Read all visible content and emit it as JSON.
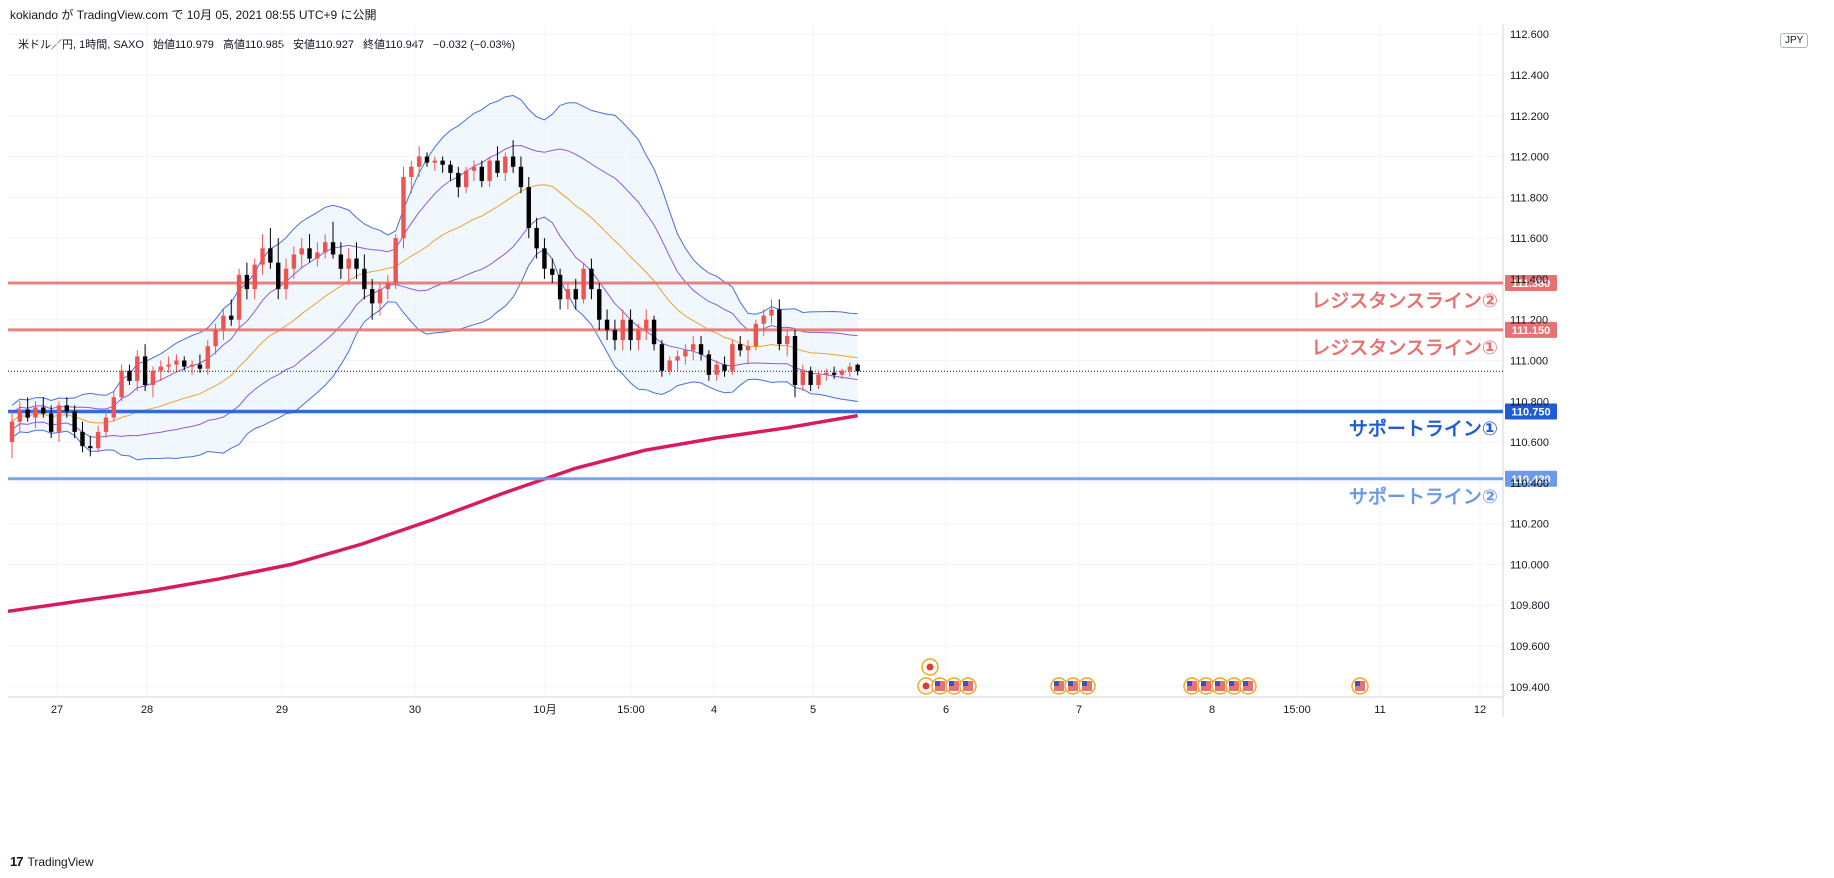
{
  "header": {
    "published_by": "kokiando が TradingView.com で 10月 05, 2021 08:55 UTC+9 に公開",
    "symbol": "米ドル／円, 1時間, SAXO",
    "open": "始値110.979",
    "high": "高値110.985",
    "low": "安値110.927",
    "close": "終値110.947",
    "change": "−0.032 (−0.03%)"
  },
  "currency": "JPY",
  "footer": {
    "brand": "TradingView",
    "logo": "17"
  },
  "colors": {
    "bull": "#ef5350",
    "bear": "#000000",
    "resistance": "#e57373",
    "support1": "#1e5bd6",
    "support2": "#6b9be8",
    "ma_long": "#d81b60",
    "bb_outer": "#4a6fd8",
    "bb_inner": "#8e5bd6",
    "ma_mid": "#f0a030",
    "band_fill": "#e3f2fd"
  },
  "chart_data": {
    "type": "candlestick",
    "symbol": "USDJPY",
    "timeframe": "1時間",
    "ylim": [
      109.35,
      112.65
    ],
    "y_ticks": [
      "112.600",
      "112.400",
      "112.200",
      "112.000",
      "111.800",
      "111.600",
      "111.400",
      "111.200",
      "111.000",
      "110.800",
      "110.600",
      "110.400",
      "110.200",
      "110.000",
      "109.800",
      "109.600",
      "109.400"
    ],
    "x_ticks": [
      "27",
      "28",
      "29",
      "30",
      "10月",
      "15:00",
      "4",
      "5",
      "6",
      "7",
      "8",
      "15:00",
      "11",
      "12"
    ],
    "price_labels": [
      "111.380",
      "111.150",
      "110.750",
      "110.420"
    ],
    "horizontal_lines": [
      {
        "name": "レジスタンスライン②",
        "value": 111.38
      },
      {
        "name": "レジスタンスライン①",
        "value": 111.15
      },
      {
        "name": "サポートライン①",
        "value": 110.75
      },
      {
        "name": "サポートライン②",
        "value": 110.42
      }
    ],
    "last_price": 110.947,
    "candles": [
      {
        "o": 110.6,
        "h": 110.75,
        "l": 110.52,
        "c": 110.7
      },
      {
        "o": 110.7,
        "h": 110.8,
        "l": 110.65,
        "c": 110.76
      },
      {
        "o": 110.76,
        "h": 110.82,
        "l": 110.7,
        "c": 110.72
      },
      {
        "o": 110.72,
        "h": 110.8,
        "l": 110.67,
        "c": 110.77
      },
      {
        "o": 110.77,
        "h": 110.82,
        "l": 110.72,
        "c": 110.74
      },
      {
        "o": 110.74,
        "h": 110.78,
        "l": 110.62,
        "c": 110.65
      },
      {
        "o": 110.65,
        "h": 110.8,
        "l": 110.6,
        "c": 110.78
      },
      {
        "o": 110.78,
        "h": 110.82,
        "l": 110.72,
        "c": 110.75
      },
      {
        "o": 110.75,
        "h": 110.78,
        "l": 110.62,
        "c": 110.65
      },
      {
        "o": 110.65,
        "h": 110.7,
        "l": 110.55,
        "c": 110.58
      },
      {
        "o": 110.58,
        "h": 110.63,
        "l": 110.53,
        "c": 110.57
      },
      {
        "o": 110.57,
        "h": 110.68,
        "l": 110.55,
        "c": 110.65
      },
      {
        "o": 110.65,
        "h": 110.75,
        "l": 110.62,
        "c": 110.72
      },
      {
        "o": 110.72,
        "h": 110.85,
        "l": 110.7,
        "c": 110.82
      },
      {
        "o": 110.82,
        "h": 110.98,
        "l": 110.8,
        "c": 110.95
      },
      {
        "o": 110.95,
        "h": 110.98,
        "l": 110.88,
        "c": 110.9
      },
      {
        "o": 110.9,
        "h": 111.05,
        "l": 110.85,
        "c": 111.02
      },
      {
        "o": 111.02,
        "h": 111.08,
        "l": 110.85,
        "c": 110.88
      },
      {
        "o": 110.88,
        "h": 110.97,
        "l": 110.82,
        "c": 110.95
      },
      {
        "o": 110.95,
        "h": 111.0,
        "l": 110.9,
        "c": 110.97
      },
      {
        "o": 110.97,
        "h": 111.02,
        "l": 110.94,
        "c": 110.98
      },
      {
        "o": 110.98,
        "h": 111.03,
        "l": 110.95,
        "c": 111.0
      },
      {
        "o": 111.0,
        "h": 111.02,
        "l": 110.95,
        "c": 110.97
      },
      {
        "o": 110.97,
        "h": 111.0,
        "l": 110.93,
        "c": 110.98
      },
      {
        "o": 110.98,
        "h": 111.03,
        "l": 110.94,
        "c": 110.96
      },
      {
        "o": 110.96,
        "h": 111.1,
        "l": 110.93,
        "c": 111.07
      },
      {
        "o": 111.07,
        "h": 111.18,
        "l": 111.03,
        "c": 111.15
      },
      {
        "o": 111.15,
        "h": 111.25,
        "l": 111.1,
        "c": 111.22
      },
      {
        "o": 111.22,
        "h": 111.3,
        "l": 111.17,
        "c": 111.2
      },
      {
        "o": 111.2,
        "h": 111.45,
        "l": 111.15,
        "c": 111.42
      },
      {
        "o": 111.42,
        "h": 111.48,
        "l": 111.3,
        "c": 111.35
      },
      {
        "o": 111.35,
        "h": 111.5,
        "l": 111.3,
        "c": 111.47
      },
      {
        "o": 111.47,
        "h": 111.62,
        "l": 111.42,
        "c": 111.55
      },
      {
        "o": 111.55,
        "h": 111.65,
        "l": 111.45,
        "c": 111.48
      },
      {
        "o": 111.48,
        "h": 111.6,
        "l": 111.3,
        "c": 111.35
      },
      {
        "o": 111.35,
        "h": 111.5,
        "l": 111.3,
        "c": 111.45
      },
      {
        "o": 111.45,
        "h": 111.56,
        "l": 111.4,
        "c": 111.52
      },
      {
        "o": 111.52,
        "h": 111.6,
        "l": 111.45,
        "c": 111.55
      },
      {
        "o": 111.55,
        "h": 111.62,
        "l": 111.48,
        "c": 111.5
      },
      {
        "o": 111.5,
        "h": 111.58,
        "l": 111.46,
        "c": 111.53
      },
      {
        "o": 111.53,
        "h": 111.62,
        "l": 111.5,
        "c": 111.58
      },
      {
        "o": 111.58,
        "h": 111.68,
        "l": 111.5,
        "c": 111.52
      },
      {
        "o": 111.52,
        "h": 111.58,
        "l": 111.4,
        "c": 111.45
      },
      {
        "o": 111.45,
        "h": 111.55,
        "l": 111.38,
        "c": 111.5
      },
      {
        "o": 111.5,
        "h": 111.58,
        "l": 111.4,
        "c": 111.45
      },
      {
        "o": 111.45,
        "h": 111.52,
        "l": 111.3,
        "c": 111.35
      },
      {
        "o": 111.35,
        "h": 111.4,
        "l": 111.2,
        "c": 111.28
      },
      {
        "o": 111.28,
        "h": 111.38,
        "l": 111.22,
        "c": 111.35
      },
      {
        "o": 111.35,
        "h": 111.42,
        "l": 111.3,
        "c": 111.38
      },
      {
        "o": 111.38,
        "h": 111.62,
        "l": 111.35,
        "c": 111.6
      },
      {
        "o": 111.6,
        "h": 111.95,
        "l": 111.55,
        "c": 111.9
      },
      {
        "o": 111.9,
        "h": 111.98,
        "l": 111.82,
        "c": 111.95
      },
      {
        "o": 111.95,
        "h": 112.05,
        "l": 111.9,
        "c": 112.0
      },
      {
        "o": 112.0,
        "h": 112.02,
        "l": 111.95,
        "c": 111.97
      },
      {
        "o": 111.97,
        "h": 112.0,
        "l": 111.93,
        "c": 111.98
      },
      {
        "o": 111.98,
        "h": 112.0,
        "l": 111.92,
        "c": 111.96
      },
      {
        "o": 111.96,
        "h": 111.98,
        "l": 111.88,
        "c": 111.92
      },
      {
        "o": 111.92,
        "h": 111.95,
        "l": 111.8,
        "c": 111.85
      },
      {
        "o": 111.85,
        "h": 111.95,
        "l": 111.82,
        "c": 111.93
      },
      {
        "o": 111.93,
        "h": 111.98,
        "l": 111.88,
        "c": 111.95
      },
      {
        "o": 111.95,
        "h": 111.98,
        "l": 111.85,
        "c": 111.88
      },
      {
        "o": 111.88,
        "h": 112.0,
        "l": 111.85,
        "c": 111.98
      },
      {
        "o": 111.98,
        "h": 112.05,
        "l": 111.9,
        "c": 111.92
      },
      {
        "o": 111.92,
        "h": 112.02,
        "l": 111.88,
        "c": 112.0
      },
      {
        "o": 112.0,
        "h": 112.08,
        "l": 111.92,
        "c": 111.95
      },
      {
        "o": 111.95,
        "h": 112.0,
        "l": 111.82,
        "c": 111.85
      },
      {
        "o": 111.85,
        "h": 111.9,
        "l": 111.6,
        "c": 111.65
      },
      {
        "o": 111.65,
        "h": 111.7,
        "l": 111.5,
        "c": 111.55
      },
      {
        "o": 111.55,
        "h": 111.6,
        "l": 111.4,
        "c": 111.45
      },
      {
        "o": 111.45,
        "h": 111.5,
        "l": 111.38,
        "c": 111.42
      },
      {
        "o": 111.42,
        "h": 111.45,
        "l": 111.25,
        "c": 111.3
      },
      {
        "o": 111.3,
        "h": 111.38,
        "l": 111.25,
        "c": 111.35
      },
      {
        "o": 111.35,
        "h": 111.4,
        "l": 111.25,
        "c": 111.3
      },
      {
        "o": 111.3,
        "h": 111.48,
        "l": 111.28,
        "c": 111.45
      },
      {
        "o": 111.45,
        "h": 111.5,
        "l": 111.3,
        "c": 111.35
      },
      {
        "o": 111.35,
        "h": 111.38,
        "l": 111.15,
        "c": 111.2
      },
      {
        "o": 111.2,
        "h": 111.25,
        "l": 111.1,
        "c": 111.15
      },
      {
        "o": 111.15,
        "h": 111.2,
        "l": 111.05,
        "c": 111.1
      },
      {
        "o": 111.1,
        "h": 111.25,
        "l": 111.05,
        "c": 111.2
      },
      {
        "o": 111.2,
        "h": 111.25,
        "l": 111.05,
        "c": 111.1
      },
      {
        "o": 111.1,
        "h": 111.18,
        "l": 111.05,
        "c": 111.15
      },
      {
        "o": 111.15,
        "h": 111.25,
        "l": 111.1,
        "c": 111.2
      },
      {
        "o": 111.2,
        "h": 111.22,
        "l": 111.05,
        "c": 111.08
      },
      {
        "o": 111.08,
        "h": 111.1,
        "l": 110.92,
        "c": 110.95
      },
      {
        "o": 110.95,
        "h": 111.02,
        "l": 110.93,
        "c": 111.0
      },
      {
        "o": 111.0,
        "h": 111.05,
        "l": 110.95,
        "c": 111.02
      },
      {
        "o": 111.02,
        "h": 111.08,
        "l": 110.98,
        "c": 111.05
      },
      {
        "o": 111.05,
        "h": 111.12,
        "l": 111.0,
        "c": 111.08
      },
      {
        "o": 111.08,
        "h": 111.12,
        "l": 111.0,
        "c": 111.03
      },
      {
        "o": 111.03,
        "h": 111.05,
        "l": 110.9,
        "c": 110.93
      },
      {
        "o": 110.93,
        "h": 111.0,
        "l": 110.9,
        "c": 110.98
      },
      {
        "o": 110.98,
        "h": 111.02,
        "l": 110.92,
        "c": 110.95
      },
      {
        "o": 110.95,
        "h": 111.1,
        "l": 110.93,
        "c": 111.08
      },
      {
        "o": 111.08,
        "h": 111.12,
        "l": 111.02,
        "c": 111.05
      },
      {
        "o": 111.05,
        "h": 111.1,
        "l": 110.98,
        "c": 111.07
      },
      {
        "o": 111.07,
        "h": 111.2,
        "l": 111.05,
        "c": 111.18
      },
      {
        "o": 111.18,
        "h": 111.25,
        "l": 111.12,
        "c": 111.22
      },
      {
        "o": 111.22,
        "h": 111.3,
        "l": 111.18,
        "c": 111.25
      },
      {
        "o": 111.25,
        "h": 111.3,
        "l": 111.05,
        "c": 111.08
      },
      {
        "o": 111.08,
        "h": 111.15,
        "l": 111.02,
        "c": 111.12
      },
      {
        "o": 111.12,
        "h": 111.15,
        "l": 110.82,
        "c": 110.88
      },
      {
        "o": 110.88,
        "h": 110.98,
        "l": 110.85,
        "c": 110.95
      },
      {
        "o": 110.95,
        "h": 110.97,
        "l": 110.85,
        "c": 110.88
      },
      {
        "o": 110.88,
        "h": 110.95,
        "l": 110.86,
        "c": 110.93
      },
      {
        "o": 110.93,
        "h": 110.96,
        "l": 110.9,
        "c": 110.94
      },
      {
        "o": 110.94,
        "h": 110.97,
        "l": 110.91,
        "c": 110.93
      },
      {
        "o": 110.93,
        "h": 110.96,
        "l": 110.91,
        "c": 110.95
      },
      {
        "o": 110.95,
        "h": 110.99,
        "l": 110.92,
        "c": 110.97
      },
      {
        "o": 110.979,
        "h": 110.985,
        "l": 110.927,
        "c": 110.947
      }
    ],
    "indicators": {
      "bollinger_bands": {
        "shown": true
      },
      "moving_average_mid": {
        "shown": true
      },
      "moving_average_long": {
        "values": [
          109.77,
          109.82,
          109.87,
          109.93,
          110.0,
          110.1,
          110.22,
          110.35,
          110.47,
          110.56,
          110.62,
          110.67,
          110.73
        ]
      }
    },
    "event_markers": {
      "x_ticks_at": [
        "6",
        "6",
        "6",
        "6",
        "7",
        "7",
        "7",
        "8",
        "8",
        "8",
        "8",
        "8",
        "11"
      ],
      "kinds": [
        "jp",
        "us",
        "us",
        "us",
        "us",
        "us",
        "us",
        "us",
        "us",
        "us",
        "us",
        "us",
        "us"
      ]
    },
    "grid": true
  }
}
